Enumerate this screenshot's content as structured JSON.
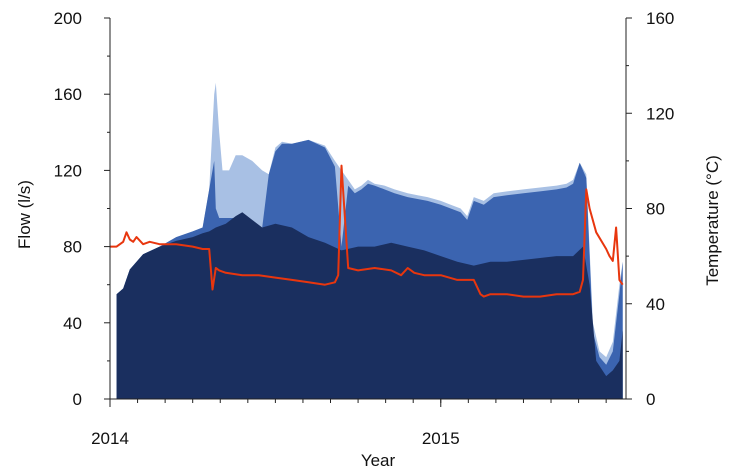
{
  "chart_data": {
    "type": "area",
    "xlabel": "Year",
    "ylabel_left": "Flow (l/s)",
    "ylabel_right": "Temperature (°C)",
    "x_unit": "decimal year",
    "xlim": [
      2014.0,
      2015.56
    ],
    "ylim_left": [
      0,
      200
    ],
    "ylim_right": [
      0,
      160
    ],
    "x_ticks": [
      {
        "value": 2014.0,
        "label": "2014"
      },
      {
        "value": 2015.0,
        "label": "2015"
      }
    ],
    "y_ticks_left": [
      0,
      40,
      80,
      120,
      160,
      200
    ],
    "y_ticks_right": [
      0,
      40,
      80,
      120,
      160
    ],
    "grid": false,
    "legend": "none",
    "colors": {
      "total_flow": "#a8c0e4",
      "flow_2": "#3b64b0",
      "flow_1": "#1a2f5f",
      "temperature": "#e8360e"
    },
    "series": [
      {
        "axis": "left",
        "kind": "area",
        "color_key": "total_flow",
        "x": [
          2014.02,
          2014.04,
          2014.06,
          2014.1,
          2014.15,
          2014.2,
          2014.25,
          2014.28,
          2014.3,
          2014.315,
          2014.32,
          2014.33,
          2014.34,
          2014.36,
          2014.38,
          2014.4,
          2014.43,
          2014.46,
          2014.48,
          2014.5,
          2014.52,
          2014.55,
          2014.6,
          2014.65,
          2014.68,
          2014.7,
          2014.72,
          2014.74,
          2014.76,
          2014.78,
          2014.8,
          2014.83,
          2014.86,
          2014.9,
          2014.93,
          2014.96,
          2015.0,
          2015.03,
          2015.06,
          2015.08,
          2015.1,
          2015.13,
          2015.16,
          2015.2,
          2015.25,
          2015.3,
          2015.35,
          2015.38,
          2015.4,
          2015.42,
          2015.44,
          2015.46,
          2015.48,
          2015.5,
          2015.52,
          2015.54,
          2015.55
        ],
        "values": [
          55,
          58,
          68,
          76,
          80,
          85,
          88,
          90,
          110,
          160,
          166,
          140,
          120,
          120,
          128,
          128,
          125,
          120,
          118,
          132,
          135,
          134,
          136,
          133,
          125,
          120,
          115,
          110,
          112,
          115,
          113,
          112,
          110,
          108,
          107,
          106,
          104,
          102,
          100,
          96,
          106,
          104,
          108,
          109,
          110,
          111,
          112,
          113,
          115,
          124,
          118,
          40,
          25,
          22,
          30,
          60,
          72
        ]
      },
      {
        "axis": "left",
        "kind": "area",
        "color_key": "flow_2",
        "x": [
          2014.02,
          2014.04,
          2014.06,
          2014.1,
          2014.15,
          2014.2,
          2014.25,
          2014.28,
          2014.3,
          2014.315,
          2014.32,
          2014.33,
          2014.34,
          2014.36,
          2014.38,
          2014.4,
          2014.43,
          2014.46,
          2014.48,
          2014.5,
          2014.52,
          2014.55,
          2014.6,
          2014.65,
          2014.68,
          2014.7,
          2014.72,
          2014.74,
          2014.76,
          2014.78,
          2014.8,
          2014.83,
          2014.86,
          2014.9,
          2014.93,
          2014.96,
          2015.0,
          2015.03,
          2015.06,
          2015.08,
          2015.1,
          2015.13,
          2015.16,
          2015.2,
          2015.25,
          2015.3,
          2015.35,
          2015.38,
          2015.4,
          2015.42,
          2015.44,
          2015.46,
          2015.48,
          2015.5,
          2015.52,
          2015.54,
          2015.55
        ],
        "values": [
          55,
          58,
          68,
          76,
          80,
          85,
          88,
          90,
          110,
          125,
          100,
          95,
          95,
          95,
          95,
          95,
          92,
          90,
          118,
          130,
          134,
          134,
          136,
          132,
          122,
          80,
          112,
          108,
          110,
          113,
          112,
          110,
          108,
          106,
          105,
          104,
          102,
          100,
          98,
          94,
          104,
          102,
          106,
          107,
          108,
          109,
          110,
          111,
          113,
          124,
          116,
          35,
          22,
          18,
          25,
          55,
          72
        ]
      },
      {
        "axis": "left",
        "kind": "area",
        "color_key": "flow_1",
        "x": [
          2014.02,
          2014.04,
          2014.06,
          2014.1,
          2014.15,
          2014.2,
          2014.25,
          2014.28,
          2014.3,
          2014.32,
          2014.35,
          2014.38,
          2014.4,
          2014.43,
          2014.46,
          2014.5,
          2014.55,
          2014.6,
          2014.65,
          2014.7,
          2014.75,
          2014.8,
          2014.85,
          2014.9,
          2014.95,
          2015.0,
          2015.05,
          2015.1,
          2015.15,
          2015.2,
          2015.25,
          2015.3,
          2015.35,
          2015.4,
          2015.43,
          2015.45,
          2015.47,
          2015.5,
          2015.52,
          2015.54,
          2015.55
        ],
        "values": [
          55,
          58,
          68,
          76,
          80,
          83,
          85,
          87,
          88,
          90,
          92,
          96,
          98,
          94,
          90,
          92,
          90,
          85,
          82,
          78,
          80,
          80,
          82,
          80,
          78,
          75,
          72,
          70,
          72,
          72,
          73,
          74,
          75,
          75,
          80,
          60,
          20,
          12,
          15,
          20,
          36
        ]
      },
      {
        "axis": "right",
        "kind": "line",
        "color_key": "temperature",
        "x": [
          2014.0,
          2014.02,
          2014.04,
          2014.05,
          2014.06,
          2014.07,
          2014.08,
          2014.1,
          2014.12,
          2014.15,
          2014.2,
          2014.25,
          2014.28,
          2014.3,
          2014.31,
          2014.32,
          2014.33,
          2014.35,
          2014.4,
          2014.45,
          2014.5,
          2014.55,
          2014.6,
          2014.65,
          2014.68,
          2014.69,
          2014.7,
          2014.72,
          2014.75,
          2014.8,
          2014.85,
          2014.88,
          2014.9,
          2014.92,
          2014.95,
          2015.0,
          2015.05,
          2015.1,
          2015.12,
          2015.13,
          2015.15,
          2015.2,
          2015.25,
          2015.3,
          2015.35,
          2015.4,
          2015.42,
          2015.43,
          2015.44,
          2015.45,
          2015.47,
          2015.5,
          2015.51,
          2015.52,
          2015.53,
          2015.54,
          2015.55
        ],
        "values": [
          64,
          64,
          66,
          70,
          67,
          66,
          68,
          65,
          66,
          65,
          65,
          64,
          63,
          63,
          46,
          55,
          54,
          53,
          52,
          52,
          51,
          50,
          49,
          48,
          49,
          52,
          98,
          55,
          54,
          55,
          54,
          52,
          55,
          53,
          52,
          52,
          50,
          50,
          44,
          43,
          44,
          44,
          43,
          43,
          44,
          44,
          45,
          50,
          88,
          80,
          70,
          63,
          60,
          58,
          72,
          50,
          48
        ]
      }
    ]
  }
}
